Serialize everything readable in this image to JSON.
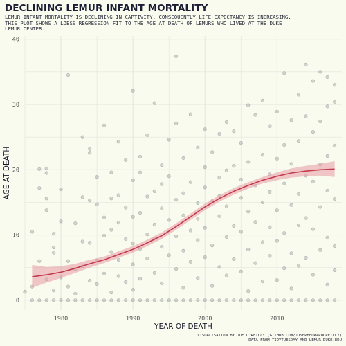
{
  "title": "DECLINING LEMUR INFANT MORTALITY",
  "subtitle": "LEMUR INFANT MORTALITY IS DECLINING IN CAPTIVITY, CONSEQUENTLY LIFE EXPECTANCY IS INCREASING.\nTHIS PLOT SHOWS A LOESS REGRESSION FIT TO THE AGE AT DEATH OF LEMURS WHO LIVED AT THE DUKE\nLEMUR CENTER.",
  "caption_line1": "VISUALISATION BY JOE O'REILLY (GITHUB.COM/JOSEPHEDWARDOREILLY)",
  "caption_line2": "DATA FROM TIDYTUESDAY AND LEMUR.DUKE.EDU",
  "colors": {
    "background": "#f8fbee",
    "points": "#3c3c50",
    "fit_line": "#c43a4d",
    "ribbon": "#e89aa4",
    "grid": "#e3e6dc"
  },
  "chart_data": {
    "type": "scatter",
    "xlabel": "YEAR OF DEATH",
    "ylabel": "AGE AT DEATH",
    "xlim": [
      1975,
      2019
    ],
    "ylim": [
      -1.5,
      40.5
    ],
    "x_ticks": [
      1980,
      1990,
      2000,
      2010
    ],
    "y_ticks": [
      0,
      10,
      20,
      30,
      40
    ],
    "grid": true,
    "legend": "none",
    "fit": {
      "method": "loess",
      "x": [
        1976,
        1978,
        1980,
        1982,
        1984,
        1986,
        1988,
        1990,
        1992,
        1994,
        1996,
        1998,
        2000,
        2002,
        2004,
        2006,
        2008,
        2010,
        2012,
        2014,
        2016,
        2018
      ],
      "y": [
        3.6,
        3.9,
        4.3,
        4.9,
        5.6,
        6.2,
        7.0,
        7.8,
        8.8,
        9.9,
        11.3,
        12.8,
        14.3,
        15.6,
        16.7,
        17.6,
        18.4,
        19.0,
        19.5,
        19.8,
        20.0,
        20.1
      ],
      "lower": [
        1.9,
        2.7,
        3.4,
        4.2,
        5.0,
        5.7,
        6.5,
        7.3,
        8.3,
        9.4,
        10.8,
        12.3,
        13.8,
        15.1,
        16.2,
        17.1,
        17.9,
        18.4,
        18.8,
        19.0,
        19.1,
        18.9
      ],
      "upper": [
        5.4,
        5.1,
        5.2,
        5.6,
        6.2,
        6.7,
        7.5,
        8.3,
        9.3,
        10.4,
        11.8,
        13.3,
        14.8,
        16.1,
        17.2,
        18.1,
        18.9,
        19.6,
        20.2,
        20.6,
        20.9,
        21.3
      ]
    },
    "points": [
      [
        1975,
        1.3
      ],
      [
        1976,
        0
      ],
      [
        1976,
        2.1
      ],
      [
        1976,
        10.5
      ],
      [
        1977,
        0
      ],
      [
        1977,
        20.1
      ],
      [
        1977,
        17.2
      ],
      [
        1977,
        6.0
      ],
      [
        1978,
        0
      ],
      [
        1978,
        19.5
      ],
      [
        1978,
        20.2
      ],
      [
        1978,
        13.8
      ],
      [
        1978,
        15.6
      ],
      [
        1978,
        3.2
      ],
      [
        1979,
        0
      ],
      [
        1979,
        1.5
      ],
      [
        1979,
        8.1
      ],
      [
        1979,
        10.2
      ],
      [
        1979,
        7.3
      ],
      [
        1980,
        0
      ],
      [
        1980,
        3.5
      ],
      [
        1980,
        17.0
      ],
      [
        1980,
        12.1
      ],
      [
        1981,
        0
      ],
      [
        1981,
        34.5
      ],
      [
        1981,
        6.0
      ],
      [
        1981,
        2.1
      ],
      [
        1982,
        0
      ],
      [
        1982,
        4.7
      ],
      [
        1982,
        11.8
      ],
      [
        1982,
        1.0
      ],
      [
        1983,
        0
      ],
      [
        1983,
        25.0
      ],
      [
        1983,
        15.8
      ],
      [
        1983,
        5.2
      ],
      [
        1983,
        9.0
      ],
      [
        1984,
        0
      ],
      [
        1984,
        23.2
      ],
      [
        1984,
        22.6
      ],
      [
        1984,
        8.8
      ],
      [
        1984,
        3.0
      ],
      [
        1984,
        15.3
      ],
      [
        1985,
        0
      ],
      [
        1985,
        6.1
      ],
      [
        1985,
        14.7
      ],
      [
        1985,
        2.5
      ],
      [
        1985,
        18.9
      ],
      [
        1986,
        0
      ],
      [
        1986,
        26.8
      ],
      [
        1986,
        9.9
      ],
      [
        1986,
        4.1
      ],
      [
        1986,
        12.7
      ],
      [
        1987,
        0
      ],
      [
        1987,
        15.6
      ],
      [
        1987,
        19.6
      ],
      [
        1987,
        7.4
      ],
      [
        1987,
        1.2
      ],
      [
        1987,
        10.8
      ],
      [
        1988,
        0
      ],
      [
        1988,
        24.3
      ],
      [
        1988,
        11.9
      ],
      [
        1988,
        3.7
      ],
      [
        1988,
        16.1
      ],
      [
        1988,
        6.2
      ],
      [
        1989,
        0
      ],
      [
        1989,
        21.5
      ],
      [
        1989,
        9.4
      ],
      [
        1989,
        2.8
      ],
      [
        1989,
        14.2
      ],
      [
        1990,
        0
      ],
      [
        1990,
        32.1
      ],
      [
        1990,
        18.4
      ],
      [
        1990,
        8.7
      ],
      [
        1990,
        5.5
      ],
      [
        1990,
        12.8
      ],
      [
        1990,
        1.6
      ],
      [
        1991,
        0
      ],
      [
        1991,
        22.0
      ],
      [
        1991,
        13.4
      ],
      [
        1991,
        7.9
      ],
      [
        1991,
        3.3
      ],
      [
        1991,
        19.6
      ],
      [
        1992,
        0
      ],
      [
        1992,
        25.3
      ],
      [
        1992,
        10.1
      ],
      [
        1992,
        6.4
      ],
      [
        1992,
        15.9
      ],
      [
        1993,
        0
      ],
      [
        1993,
        30.2
      ],
      [
        1993,
        16.7
      ],
      [
        1993,
        9.5
      ],
      [
        1993,
        4.2
      ],
      [
        1993,
        11.6
      ],
      [
        1994,
        0
      ],
      [
        1994,
        20.7
      ],
      [
        1994,
        14.1
      ],
      [
        1994,
        8.2
      ],
      [
        1994,
        2.6
      ],
      [
        1994,
        17.8
      ],
      [
        1995,
        0
      ],
      [
        1995,
        24.6
      ],
      [
        1995,
        12.3
      ],
      [
        1995,
        6.9
      ],
      [
        1995,
        19.0
      ],
      [
        1996,
        0
      ],
      [
        1996,
        37.4
      ],
      [
        1996,
        27.1
      ],
      [
        1996,
        15.4
      ],
      [
        1996,
        9.8
      ],
      [
        1996,
        4.8
      ],
      [
        1997,
        0
      ],
      [
        1997,
        21.8
      ],
      [
        1997,
        13.0
      ],
      [
        1997,
        7.6
      ],
      [
        1997,
        1.9
      ],
      [
        1997,
        16.4
      ],
      [
        1998,
        0
      ],
      [
        1998,
        28.5
      ],
      [
        1998,
        18.1
      ],
      [
        1998,
        10.7
      ],
      [
        1998,
        5.9
      ],
      [
        1999,
        0
      ],
      [
        1999,
        23.4
      ],
      [
        1999,
        14.9
      ],
      [
        1999,
        9.2
      ],
      [
        1999,
        3.4
      ],
      [
        1999,
        12.5
      ],
      [
        2000,
        0
      ],
      [
        2000,
        26.2
      ],
      [
        2000,
        17.3
      ],
      [
        2000,
        11.1
      ],
      [
        2000,
        6.6
      ],
      [
        2000,
        20.4
      ],
      [
        2001,
        0
      ],
      [
        2001,
        22.7
      ],
      [
        2001,
        15.2
      ],
      [
        2001,
        8.4
      ],
      [
        2001,
        2.2
      ],
      [
        2002,
        0
      ],
      [
        2002,
        25.5
      ],
      [
        2002,
        18.8
      ],
      [
        2002,
        12.9
      ],
      [
        2002,
        5.1
      ],
      [
        2002,
        16.0
      ],
      [
        2003,
        0
      ],
      [
        2003,
        27.3
      ],
      [
        2003,
        14.4
      ],
      [
        2003,
        9.7
      ],
      [
        2003,
        3.8
      ],
      [
        2003,
        19.9
      ],
      [
        2004,
        0
      ],
      [
        2004,
        25.9
      ],
      [
        2004,
        20.6
      ],
      [
        2004,
        11.4
      ],
      [
        2004,
        6.3
      ],
      [
        2005,
        0
      ],
      [
        2005,
        24.1
      ],
      [
        2005,
        15.7
      ],
      [
        2005,
        10.5
      ],
      [
        2005,
        4.4
      ],
      [
        2005,
        18.5
      ],
      [
        2006,
        0
      ],
      [
        2006,
        29.9
      ],
      [
        2006,
        21.2
      ],
      [
        2006,
        13.6
      ],
      [
        2006,
        7.8
      ],
      [
        2006,
        1.4
      ],
      [
        2007,
        0
      ],
      [
        2007,
        28.4
      ],
      [
        2007,
        17.6
      ],
      [
        2007,
        12.0
      ],
      [
        2007,
        5.7
      ],
      [
        2008,
        0
      ],
      [
        2008,
        30.6
      ],
      [
        2008,
        22.3
      ],
      [
        2008,
        15.0
      ],
      [
        2008,
        8.9
      ],
      [
        2008,
        2.9
      ],
      [
        2009,
        0
      ],
      [
        2009,
        26.7
      ],
      [
        2009,
        19.3
      ],
      [
        2009,
        11.2
      ],
      [
        2009,
        6.8
      ],
      [
        2009,
        16.6
      ],
      [
        2010,
        0
      ],
      [
        2010,
        28.9
      ],
      [
        2010,
        21.7
      ],
      [
        2010,
        13.8
      ],
      [
        2010,
        9.1
      ],
      [
        2010,
        3.1
      ],
      [
        2011,
        0
      ],
      [
        2011,
        34.8
      ],
      [
        2011,
        23.8
      ],
      [
        2011,
        17.9
      ],
      [
        2011,
        10.3
      ],
      [
        2011,
        4.9
      ],
      [
        2012,
        0
      ],
      [
        2012,
        27.6
      ],
      [
        2012,
        20.9
      ],
      [
        2012,
        14.6
      ],
      [
        2012,
        7.2
      ],
      [
        2012,
        1.8
      ],
      [
        2013,
        0
      ],
      [
        2013,
        31.5
      ],
      [
        2013,
        24.4
      ],
      [
        2013,
        16.3
      ],
      [
        2013,
        11.5
      ],
      [
        2013,
        5.3
      ],
      [
        2014,
        0
      ],
      [
        2014,
        36.1
      ],
      [
        2014,
        28.2
      ],
      [
        2014,
        19.1
      ],
      [
        2014,
        12.6
      ],
      [
        2014,
        6.5
      ],
      [
        2015,
        0
      ],
      [
        2015,
        33.6
      ],
      [
        2015,
        25.8
      ],
      [
        2015,
        18.2
      ],
      [
        2015,
        10.9
      ],
      [
        2015,
        3.9
      ],
      [
        2016,
        0
      ],
      [
        2016,
        35.0
      ],
      [
        2016,
        27.4
      ],
      [
        2016,
        20.8
      ],
      [
        2016,
        14.3
      ],
      [
        2016,
        7.7
      ],
      [
        2017,
        0
      ],
      [
        2017,
        34.2
      ],
      [
        2017,
        29.7
      ],
      [
        2017,
        22.1
      ],
      [
        2017,
        16.8
      ],
      [
        2017,
        9.6
      ],
      [
        2017,
        2.4
      ],
      [
        2018,
        0
      ],
      [
        2018,
        33.0
      ],
      [
        2018,
        30.4
      ],
      [
        2018,
        23.7
      ],
      [
        2018,
        15.5
      ],
      [
        2018,
        8.3
      ],
      [
        2018,
        4.6
      ]
    ]
  }
}
